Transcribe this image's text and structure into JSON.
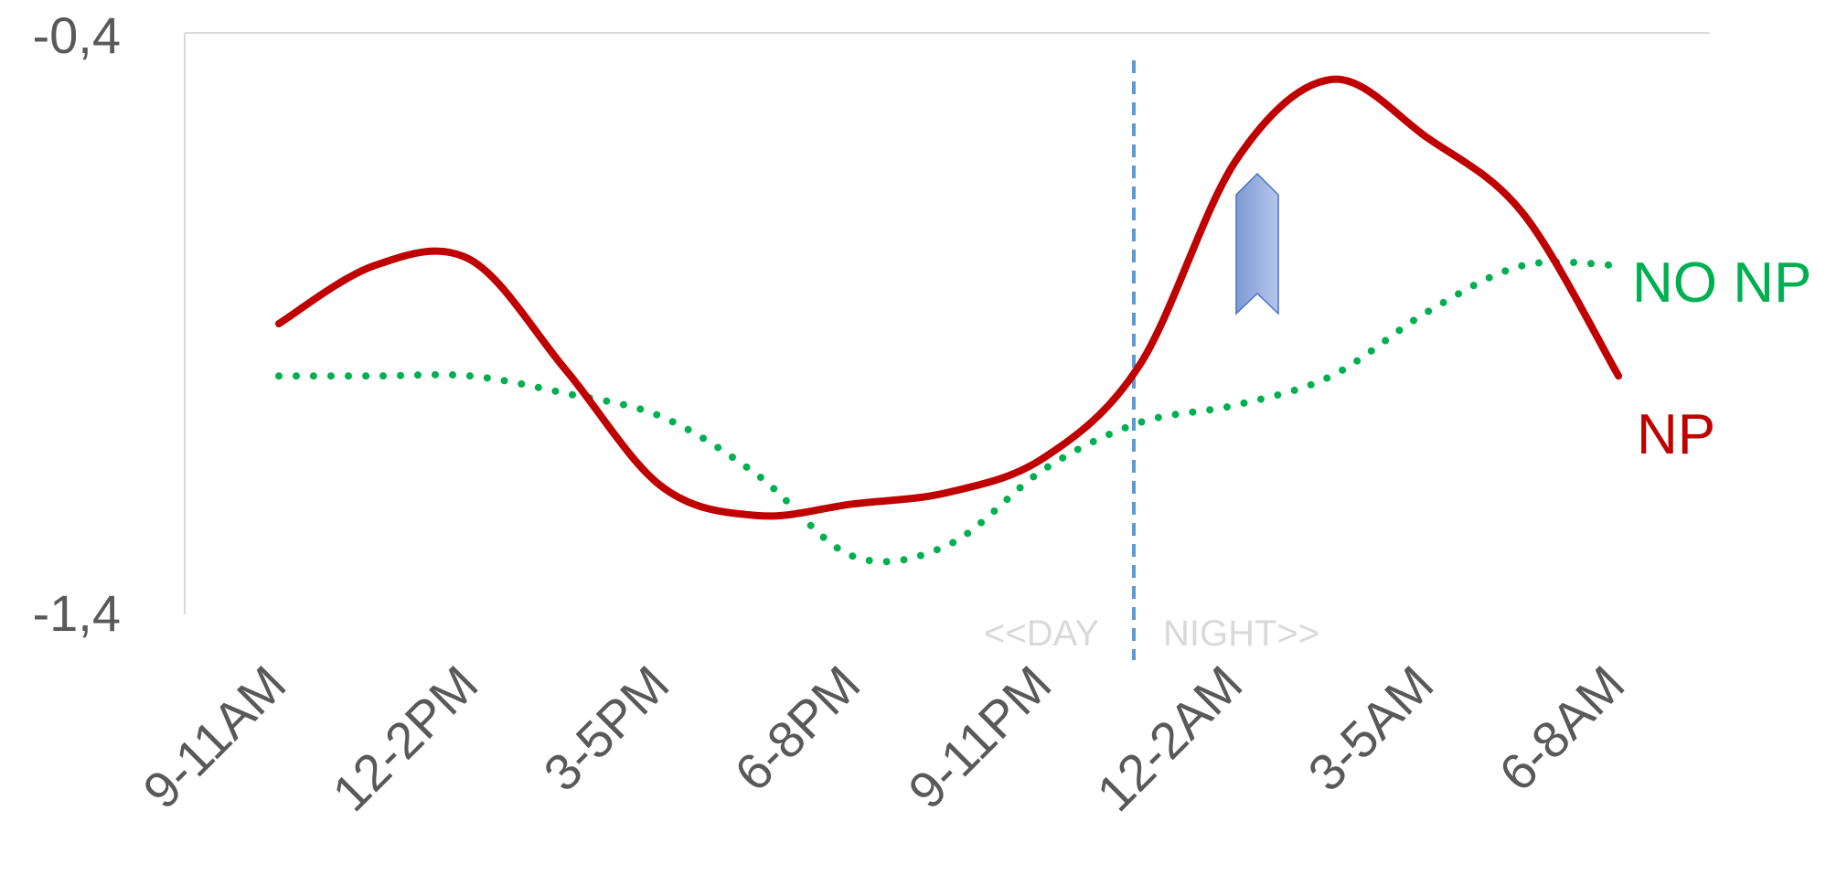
{
  "chart_data": {
    "type": "line",
    "title": "",
    "xlabel": "",
    "ylabel": "",
    "categories": [
      "9-11AM",
      "12-2PM",
      "3-5PM",
      "6-8PM",
      "9-11PM",
      "12-2AM",
      "3-5AM",
      "6-8AM"
    ],
    "y_tick_labels": [
      "-0,4",
      "-1,4"
    ],
    "ylim": [
      -1.4,
      -0.4
    ],
    "grid": false,
    "series": [
      {
        "name": "NP",
        "color": "#c00000",
        "line_style": "solid",
        "x": [
          0,
          0.5,
          1,
          1.5,
          2,
          2.5,
          3,
          3.5,
          4,
          4.5,
          5,
          5.5,
          6,
          6.5,
          7
        ],
        "values": [
          -0.9,
          -0.8,
          -0.79,
          -0.98,
          -1.18,
          -1.23,
          -1.21,
          -1.19,
          -1.13,
          -0.97,
          -0.62,
          -0.48,
          -0.58,
          -0.71,
          -0.99
        ]
      },
      {
        "name": "NO NP",
        "color": "#00b050",
        "line_style": "dotted",
        "x": [
          0,
          0.5,
          1,
          1.5,
          2,
          2.5,
          3,
          3.5,
          4,
          4.5,
          5,
          5.5,
          6,
          6.5,
          7
        ],
        "values": [
          -0.99,
          -0.99,
          -0.99,
          -1.02,
          -1.06,
          -1.16,
          -1.3,
          -1.28,
          -1.15,
          -1.07,
          -1.04,
          -0.99,
          -0.88,
          -0.8,
          -0.8
        ]
      }
    ],
    "divider": {
      "position_between": [
        "9-11PM",
        "12-2AM"
      ],
      "color": "#5b9bd5",
      "line_style": "dashed"
    },
    "annotations": {
      "day_label": "<<DAY",
      "night_label": "NIGHT>>",
      "arrow": {
        "direction": "up",
        "color": "#8ea9db"
      }
    }
  }
}
